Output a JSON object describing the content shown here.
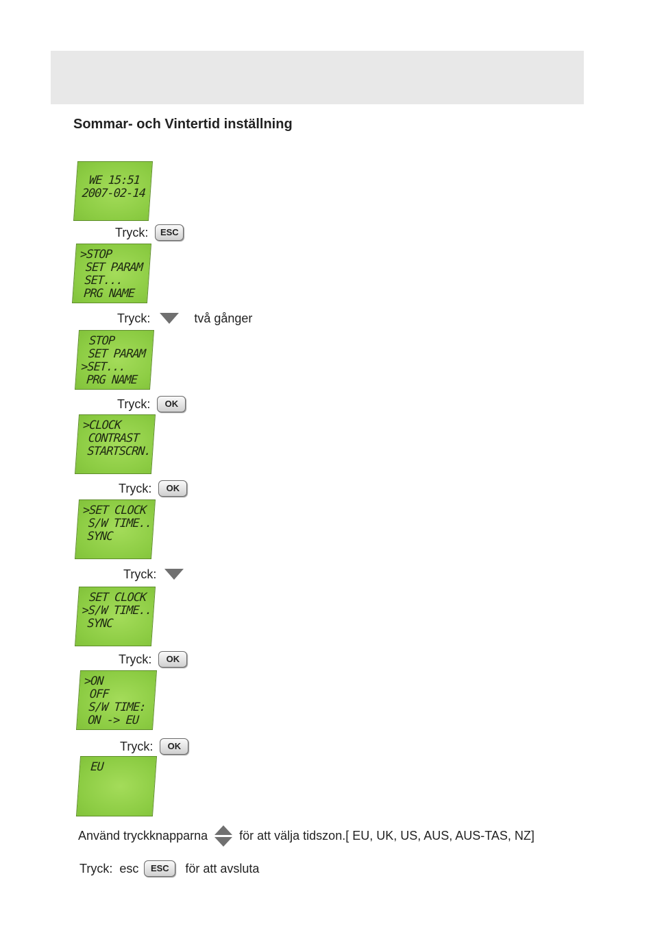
{
  "title": "Sommar- och Vintertid inställning",
  "screens": [
    {
      "lines": [
        "WE 15:51",
        "2007-02-14"
      ]
    },
    {
      "lines": [
        ">STOP",
        " SET PARAM",
        " SET...",
        " PRG NAME"
      ]
    },
    {
      "lines": [
        " STOP",
        " SET PARAM",
        ">SET...",
        " PRG NAME"
      ]
    },
    {
      "lines": [
        ">CLOCK",
        " CONTRAST",
        " STARTSCRN."
      ]
    },
    {
      "lines": [
        ">SET CLOCK",
        " S/W TIME..",
        " SYNC"
      ]
    },
    {
      "lines": [
        " SET CLOCK",
        ">S/W TIME..",
        " SYNC"
      ]
    },
    {
      "lines": [
        ">ON",
        " OFF",
        " S/W TIME:",
        " ON -> EU"
      ]
    },
    {
      "lines": [
        " EU"
      ]
    }
  ],
  "steps": [
    {
      "label": "Tryck:",
      "key": "ESC"
    },
    {
      "label": "Tryck:",
      "key": "down-arrow-icon",
      "note": "två gånger"
    },
    {
      "label": "Tryck:",
      "key": "OK"
    },
    {
      "label": "Tryck:",
      "key": "OK"
    },
    {
      "label": "Tryck:",
      "key": "down-arrow-icon"
    },
    {
      "label": "Tryck:",
      "key": "OK"
    },
    {
      "label": "Tryck:",
      "key": "OK"
    }
  ],
  "footer": {
    "line1_before": "Använd tryckknapparna",
    "line1_after": "för att välja tidszon.[ EU, UK, US, AUS, AUS-TAS, NZ]",
    "line2_label": "Tryck:  esc",
    "line2_key": "ESC",
    "line2_after": "för att avsluta"
  }
}
